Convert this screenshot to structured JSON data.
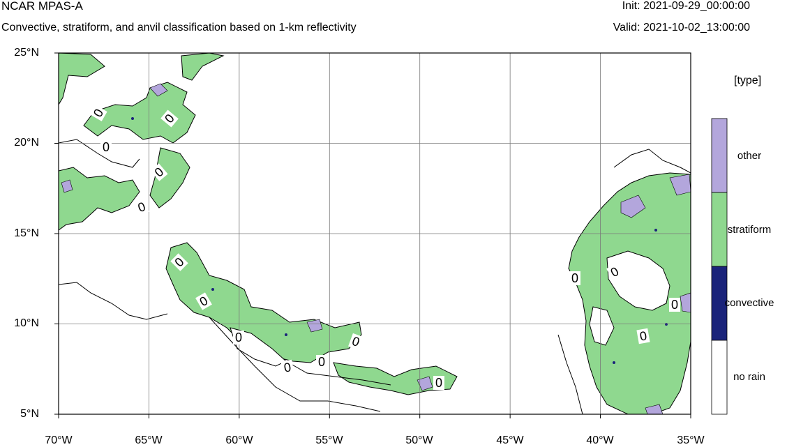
{
  "header": {
    "title": "NCAR MPAS-A",
    "subtitle": "Convective, stratiform, and anvil classification based on 1-km reflectivity",
    "init": "Init: 2021-09-29_00:00:00",
    "valid": "Valid: 2021-10-02_13:00:00"
  },
  "map": {
    "lat_labels": [
      "25°N",
      "20°N",
      "15°N",
      "10°N",
      "5°N"
    ],
    "lon_labels": [
      "70°W",
      "65°W",
      "60°W",
      "55°W",
      "50°W",
      "45°W",
      "40°W",
      "35°W"
    ],
    "extent": {
      "lon_min": -70,
      "lon_max": -35,
      "lat_min": 5,
      "lat_max": 25
    },
    "contour_label": "0",
    "colors": {
      "stratiform": "#8fd88f",
      "other": "#b3a6dc",
      "convective": "#1a237a",
      "no_rain": "#ffffff",
      "contour": "#000000"
    }
  },
  "legend": {
    "title": "[type]",
    "items": [
      {
        "label": "other",
        "color": "#b3a6dc"
      },
      {
        "label": "stratiform",
        "color": "#8fd88f"
      },
      {
        "label": "convective",
        "color": "#1a237a"
      },
      {
        "label": "no rain",
        "color": "#ffffff"
      }
    ]
  }
}
